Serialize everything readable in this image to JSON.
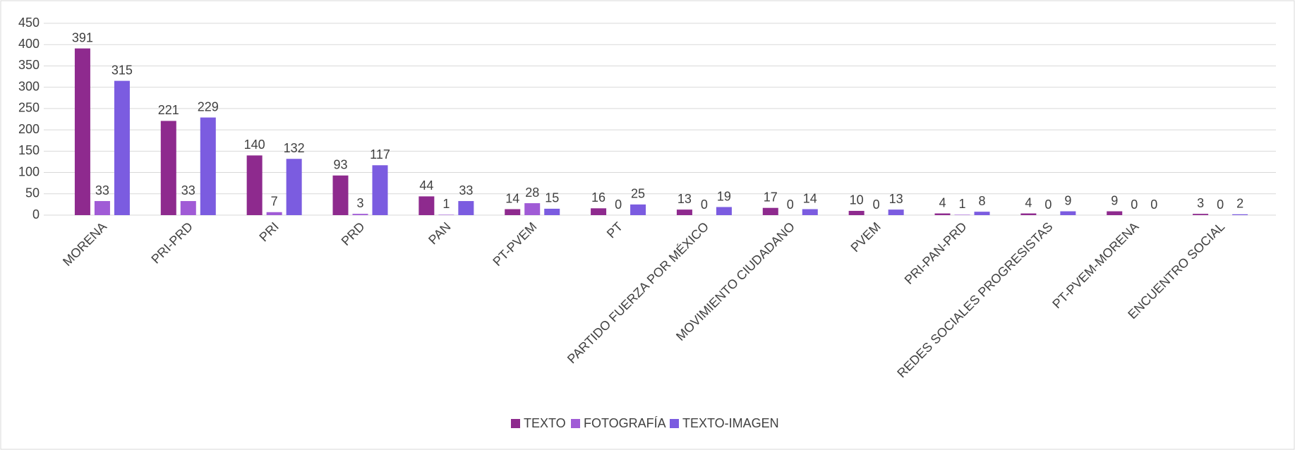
{
  "chart_data": {
    "type": "bar",
    "categories": [
      "MORENA",
      "PRI-PRD",
      "PRI",
      "PRD",
      "PAN",
      "PT-PVEM",
      "PT",
      "PARTIDO FUERZA POR MÉXICO",
      "MOVIMIENTO CIUDADANO",
      "PVEM",
      "PRI-PAN-PRD",
      "REDES SOCIALES PROGRESISTAS",
      "PT-PVEM-MORENA",
      "ENCUENTRO SOCIAL"
    ],
    "series": [
      {
        "name": "TEXTO",
        "color": "#8e2a8e",
        "values": [
          391,
          221,
          140,
          93,
          44,
          14,
          16,
          13,
          17,
          10,
          4,
          4,
          9,
          3
        ]
      },
      {
        "name": "FOTOGRAFÍA",
        "color": "#a05bd6",
        "values": [
          33,
          33,
          7,
          3,
          1,
          28,
          0,
          0,
          0,
          0,
          1,
          0,
          0,
          0
        ]
      },
      {
        "name": "TEXTO-IMAGEN",
        "color": "#7b5ce0",
        "values": [
          315,
          229,
          132,
          117,
          33,
          15,
          25,
          19,
          14,
          13,
          8,
          9,
          0,
          2
        ]
      }
    ],
    "ylim": [
      0,
      450
    ],
    "yticks": [
      0,
      50,
      100,
      150,
      200,
      250,
      300,
      350,
      400,
      450
    ],
    "grid": true,
    "legend": "bottom"
  }
}
